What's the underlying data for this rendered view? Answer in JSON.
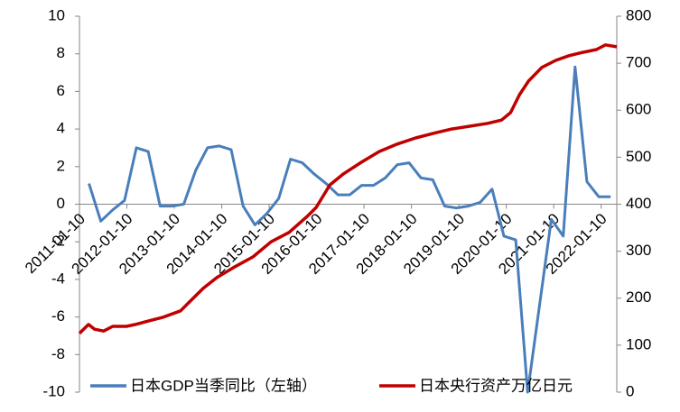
{
  "chart_data": {
    "type": "line",
    "xlim": [
      2011,
      2022.33
    ],
    "xticks": [
      {
        "value": 2011,
        "label": "2011-01-10"
      },
      {
        "value": 2012,
        "label": "2012-01-10"
      },
      {
        "value": 2013,
        "label": "2013-01-10"
      },
      {
        "value": 2014,
        "label": "2014-01-10"
      },
      {
        "value": 2015,
        "label": "2015-01-10"
      },
      {
        "value": 2016,
        "label": "2016-01-10"
      },
      {
        "value": 2017,
        "label": "2017-01-10"
      },
      {
        "value": 2018,
        "label": "2018-01-10"
      },
      {
        "value": 2019,
        "label": "2019-01-10"
      },
      {
        "value": 2020,
        "label": "2020-01-10"
      },
      {
        "value": 2021,
        "label": "2021-01-10"
      },
      {
        "value": 2022,
        "label": "2022-01-10"
      }
    ],
    "ylim": [
      -10,
      10
    ],
    "yticks": [
      -10,
      -8,
      -6,
      -4,
      -2,
      0,
      2,
      4,
      6,
      8,
      10
    ],
    "y2lim": [
      0,
      800
    ],
    "y2ticks": [
      0,
      100,
      200,
      300,
      400,
      500,
      600,
      700,
      800
    ],
    "legend": "bottom",
    "series": [
      {
        "name": "日本GDP当季同比（左轴）",
        "color": "#4a7ebb",
        "axis": "y",
        "x": [
          2011.2,
          2011.45,
          2011.7,
          2011.95,
          2012.2,
          2012.45,
          2012.7,
          2012.95,
          2013.2,
          2013.45,
          2013.7,
          2013.95,
          2014.2,
          2014.45,
          2014.7,
          2014.95,
          2015.2,
          2015.45,
          2015.7,
          2015.95,
          2016.2,
          2016.45,
          2016.7,
          2016.95,
          2017.2,
          2017.45,
          2017.7,
          2017.95,
          2018.2,
          2018.45,
          2018.7,
          2018.95,
          2019.2,
          2019.45,
          2019.7,
          2019.95,
          2020.2,
          2020.45,
          2020.7,
          2020.95,
          2021.2,
          2021.45,
          2021.7,
          2021.95,
          2022.2
        ],
        "values": [
          1.1,
          -0.9,
          -0.3,
          0.2,
          3.0,
          2.8,
          -0.1,
          -0.1,
          0,
          1.8,
          3.0,
          3.1,
          2.9,
          -0.1,
          -1.1,
          -0.5,
          0.3,
          2.4,
          2.2,
          1.6,
          1.1,
          0.5,
          0.5,
          1.0,
          1.0,
          1.4,
          2.1,
          2.2,
          1.4,
          1.3,
          -0.1,
          -0.2,
          -0.1,
          0.1,
          0.8,
          -1.7,
          -1.9,
          -10.0,
          -5.4,
          -0.8,
          -1.7,
          7.3,
          1.2,
          0.4,
          0.4
        ]
      },
      {
        "name": "日本央行资产万亿日元",
        "color": "#c00000",
        "axis": "y2",
        "x": [
          2011.0,
          2011.19,
          2011.32,
          2011.51,
          2011.7,
          2011.99,
          2012.18,
          2012.47,
          2012.75,
          2013.13,
          2013.32,
          2013.61,
          2013.9,
          2014.28,
          2014.66,
          2015.04,
          2015.42,
          2015.8,
          2015.99,
          2016.28,
          2016.56,
          2016.94,
          2017.32,
          2017.7,
          2018.09,
          2018.47,
          2018.85,
          2019.23,
          2019.61,
          2019.9,
          2020.09,
          2020.28,
          2020.47,
          2020.75,
          2021.04,
          2021.32,
          2021.61,
          2021.9,
          2022.09,
          2022.33
        ],
        "values": [
          125,
          144,
          134,
          130,
          140,
          140,
          144,
          152,
          159,
          173,
          192,
          221,
          244,
          267,
          288,
          320,
          340,
          374,
          393,
          441,
          464,
          489,
          512,
          528,
          541,
          551,
          560,
          566,
          572,
          579,
          595,
          633,
          662,
          691,
          706,
          716,
          723,
          729,
          739,
          735
        ]
      }
    ]
  }
}
